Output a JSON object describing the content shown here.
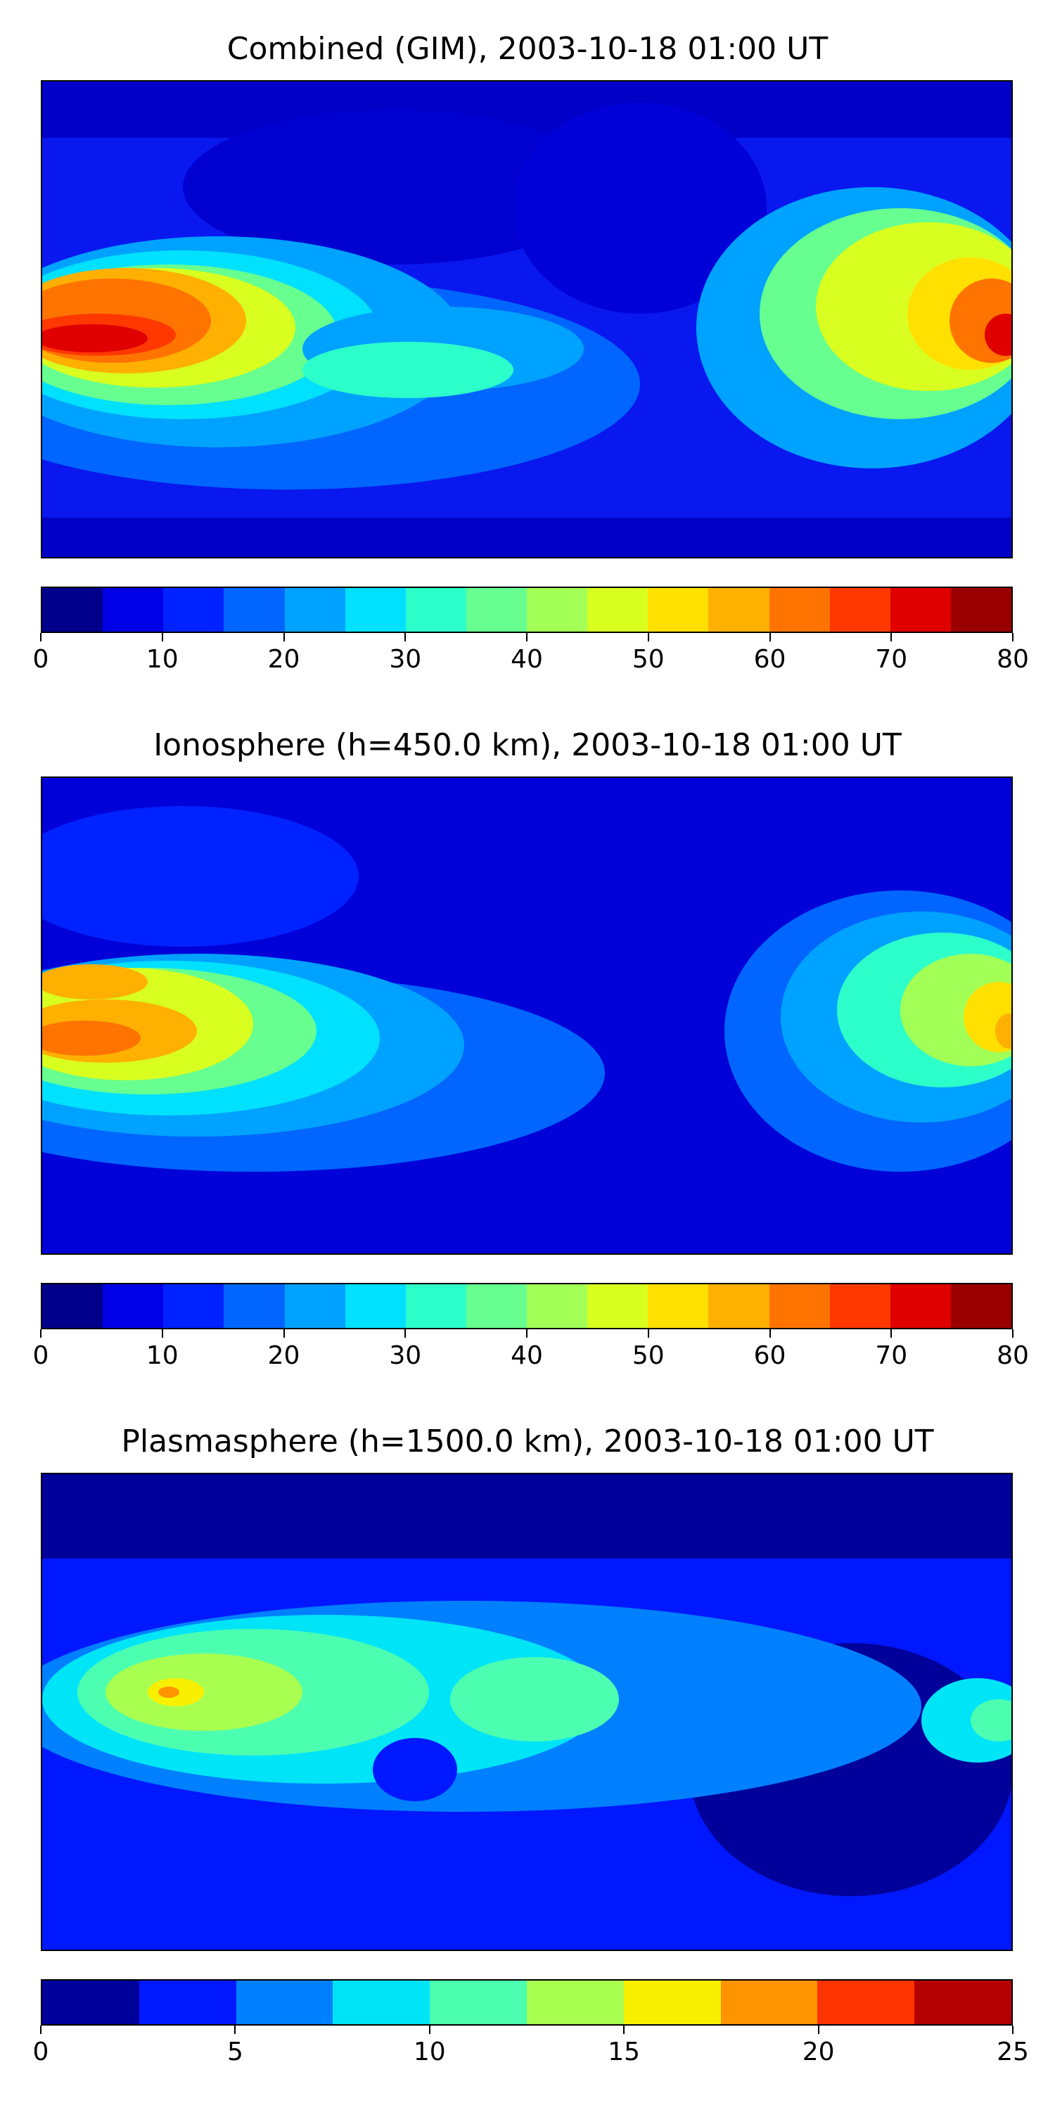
{
  "panels": [
    {
      "title": "Combined (GIM), 2003-10-18 01:00 UT",
      "colorbar": {
        "colors": [
          "#00008b",
          "#0000e6",
          "#0022ff",
          "#0066ff",
          "#00a2ff",
          "#00e0ff",
          "#2cffca",
          "#66ff90",
          "#a2ff56",
          "#d8ff20",
          "#ffe000",
          "#ffb000",
          "#ff7400",
          "#ff3800",
          "#e00000",
          "#9a0000"
        ],
        "tick_values": [
          0,
          10,
          20,
          30,
          40,
          50,
          60,
          70,
          80
        ],
        "tick_labels": [
          "0",
          "10",
          "20",
          "30",
          "40",
          "50",
          "60",
          "70",
          "80"
        ],
        "min": 0,
        "max": 80
      }
    },
    {
      "title": "Ionosphere  (h=450.0 km), 2003-10-18 01:00 UT",
      "colorbar": {
        "colors": [
          "#00008b",
          "#0000e6",
          "#0022ff",
          "#0066ff",
          "#00a2ff",
          "#00e0ff",
          "#2cffca",
          "#66ff90",
          "#a2ff56",
          "#d8ff20",
          "#ffe000",
          "#ffb000",
          "#ff7400",
          "#ff3800",
          "#e00000",
          "#9a0000"
        ],
        "tick_values": [
          0,
          10,
          20,
          30,
          40,
          50,
          60,
          70,
          80
        ],
        "tick_labels": [
          "0",
          "10",
          "20",
          "30",
          "40",
          "50",
          "60",
          "70",
          "80"
        ],
        "min": 0,
        "max": 80
      }
    },
    {
      "title": "Plasmasphere (h=1500.0 km), 2003-10-18 01:00 UT",
      "colorbar": {
        "colors": [
          "#00009a",
          "#0018ff",
          "#0080ff",
          "#00e4f8",
          "#4cffb0",
          "#a8ff50",
          "#f8f000",
          "#ff9400",
          "#ff3400",
          "#b40000"
        ],
        "tick_values": [
          0,
          5,
          10,
          15,
          20,
          25
        ],
        "tick_labels": [
          "0",
          "5",
          "10",
          "15",
          "20",
          "25"
        ],
        "min": 0,
        "max": 25
      }
    }
  ]
}
